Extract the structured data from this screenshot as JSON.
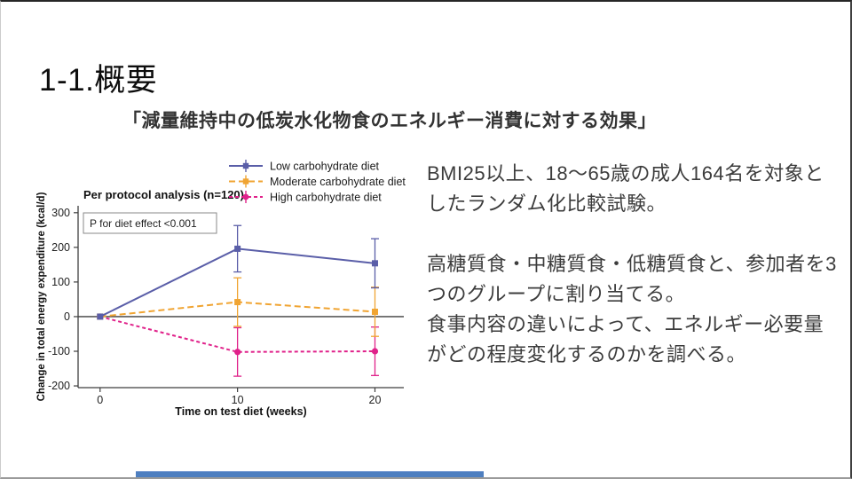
{
  "title": "1-1.概要",
  "subtitle": "「減量維持中の低炭水化物食のエネルギー消費に対する効果」",
  "body": {
    "paragraph1": "BMI25以上、18〜65歳の成人164名を対象としたランダム化比較試験。",
    "paragraph2": "高糖質食・中糖質食・低糖質食と、参加者を3つのグループに割り当てる。",
    "paragraph3": "食事内容の違いによって、エネルギー必要量がどの程度変化するのかを調べる。"
  },
  "footer_bar_color": "#4e7fc0",
  "chart_data": {
    "type": "line",
    "title": "Per protocol analysis (n=120)",
    "annotation": "P for diet effect <0.001",
    "xlabel": "Time on test diet (weeks)",
    "ylabel": "Change in total energy expenditure (kcal/d)",
    "x": [
      0,
      10,
      20
    ],
    "xticks": [
      0,
      10,
      20
    ],
    "yticks": [
      300,
      200,
      100,
      0,
      -100,
      -200
    ],
    "ylim": [
      -200,
      300
    ],
    "xlim": [
      0,
      20
    ],
    "grid": false,
    "legend_position": "top",
    "zero_line": true,
    "series": [
      {
        "name": "Low carbohydrate diet",
        "color": "#5a5ea8",
        "dash": "none",
        "marker": "square",
        "values": [
          0,
          196,
          154
        ],
        "err": [
          0,
          67,
          71
        ]
      },
      {
        "name": "Moderate carbohydrate diet",
        "color": "#f0a432",
        "dash": "long",
        "marker": "square",
        "values": [
          0,
          42,
          14
        ],
        "err": [
          0,
          70,
          71
        ]
      },
      {
        "name": "High carbohydrate diet",
        "color": "#e0218a",
        "dash": "short",
        "marker": "circle",
        "values": [
          0,
          -102,
          -100
        ],
        "err": [
          0,
          70,
          70
        ]
      }
    ]
  }
}
